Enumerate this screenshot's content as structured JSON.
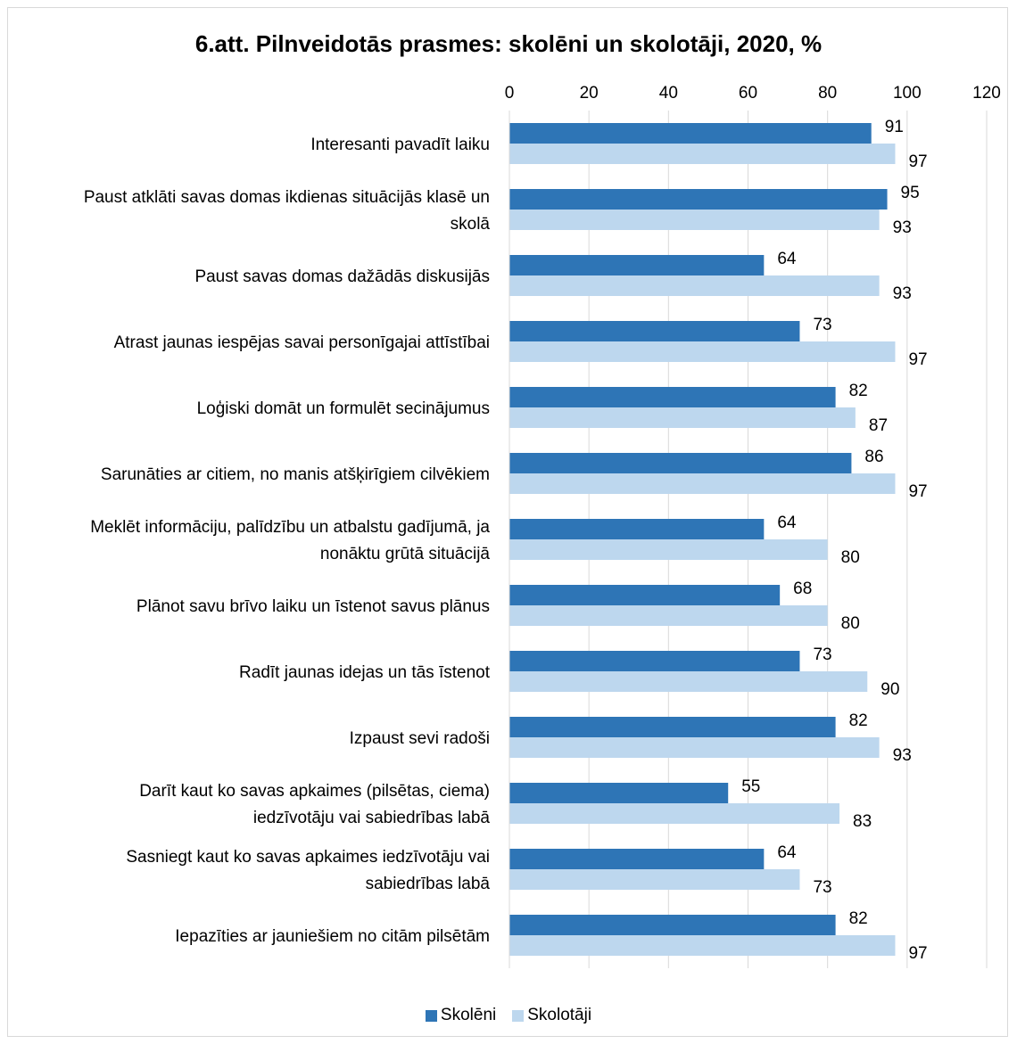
{
  "chart_data": {
    "type": "bar",
    "orientation": "horizontal",
    "title": "6.att. Pilnveidotās prasmes: skolēni un skolotāji, 2020, %",
    "xlim": [
      0,
      120
    ],
    "x_ticks": [
      0,
      20,
      40,
      60,
      80,
      100,
      120
    ],
    "x_axis_position": "top",
    "grid": true,
    "legend_position": "bottom",
    "categories": [
      [
        "Interesanti pavadīt laiku"
      ],
      [
        "Paust atklāti savas domas ikdienas situācijās klasē un",
        "skolā"
      ],
      [
        "Paust savas domas dažādās diskusijās"
      ],
      [
        "Atrast jaunas iespējas savai personīgajai attīstībai"
      ],
      [
        "Loģiski domāt un formulēt secinājumus"
      ],
      [
        "Sarunāties ar citiem, no manis atšķirīgiem cilvēkiem"
      ],
      [
        "Meklēt informāciju, palīdzību un atbalstu gadījumā, ja",
        "nonāktu grūtā situācijā"
      ],
      [
        "Plānot savu brīvo laiku un īstenot savus plānus"
      ],
      [
        "Radīt jaunas idejas un tās īstenot"
      ],
      [
        "Izpaust sevi radoši"
      ],
      [
        "Darīt kaut ko savas apkaimes (pilsētas, ciema)",
        "iedzīvotāju vai sabiedrības labā"
      ],
      [
        "Sasniegt kaut ko savas apkaimes iedzīvotāju vai",
        "sabiedrības labā"
      ],
      [
        "Iepazīties ar jauniešiem no citām pilsētām"
      ]
    ],
    "series": [
      {
        "name": "Skolēni",
        "color": "#2e75b6",
        "values": [
          91,
          95,
          64,
          73,
          82,
          86,
          64,
          68,
          73,
          82,
          55,
          64,
          82
        ]
      },
      {
        "name": "Skolotāji",
        "color": "#bdd7ee",
        "values": [
          97,
          93,
          93,
          97,
          87,
          97,
          80,
          80,
          90,
          93,
          83,
          73,
          97
        ]
      }
    ]
  }
}
